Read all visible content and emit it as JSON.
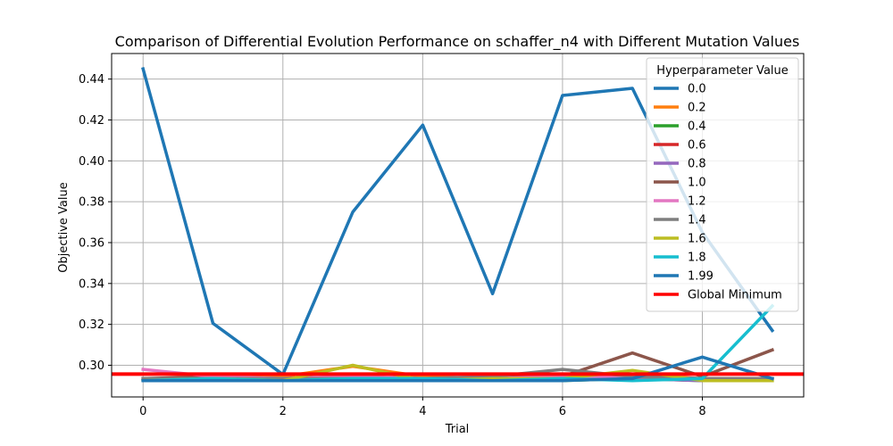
{
  "chart_data": {
    "type": "line",
    "title": "Comparison of Differential Evolution Performance on schaffer_n4 with Different Mutation Values",
    "xlabel": "Trial",
    "ylabel": "Objective Value",
    "xlim": [
      -0.45,
      9.45
    ],
    "ylim": [
      0.2845,
      0.4525
    ],
    "xticks": [
      0,
      2,
      4,
      6,
      8
    ],
    "yticks": [
      0.3,
      0.32,
      0.34,
      0.36,
      0.38,
      0.4,
      0.42,
      0.44
    ],
    "grid": true,
    "legend": {
      "title": "Hyperparameter Value",
      "placement": "top-right"
    },
    "x": [
      0,
      1,
      2,
      3,
      4,
      5,
      6,
      7,
      8,
      9
    ],
    "series": [
      {
        "name": "0.0",
        "color": "#1f77b4",
        "values": [
          0.445,
          0.3205,
          0.2955,
          0.375,
          0.4175,
          0.335,
          0.432,
          0.4355,
          0.365,
          0.317
        ]
      },
      {
        "name": "0.2",
        "color": "#ff7f0e",
        "values": [
          0.2925,
          0.2945,
          0.2945,
          0.2995,
          0.2945,
          0.2935,
          0.2945,
          0.2955,
          0.2935,
          0.2935
        ]
      },
      {
        "name": "0.4",
        "color": "#2ca02c",
        "values": [
          0.2925,
          0.2935,
          0.2925,
          0.2935,
          0.2925,
          0.2925,
          0.2925,
          0.2935,
          0.2925,
          0.2925
        ]
      },
      {
        "name": "0.6",
        "color": "#d62728",
        "values": [
          0.2935,
          0.2935,
          0.2935,
          0.2945,
          0.2935,
          0.2935,
          0.2945,
          0.2945,
          0.2935,
          0.2935
        ]
      },
      {
        "name": "0.8",
        "color": "#9467bd",
        "values": [
          0.2925,
          0.2935,
          0.2925,
          0.2935,
          0.2925,
          0.2935,
          0.2935,
          0.2935,
          0.2925,
          0.2935
        ]
      },
      {
        "name": "1.0",
        "color": "#8c564b",
        "values": [
          0.2935,
          0.2945,
          0.2935,
          0.2945,
          0.2935,
          0.2945,
          0.2945,
          0.306,
          0.2945,
          0.3075
        ]
      },
      {
        "name": "1.2",
        "color": "#e377c2",
        "values": [
          0.298,
          0.2945,
          0.2935,
          0.2945,
          0.2935,
          0.2935,
          0.2945,
          0.2945,
          0.2935,
          0.2935
        ]
      },
      {
        "name": "1.4",
        "color": "#7f7f7f",
        "values": [
          0.2935,
          0.2935,
          0.2935,
          0.2935,
          0.2935,
          0.2945,
          0.298,
          0.2945,
          0.2935,
          0.2935
        ]
      },
      {
        "name": "1.6",
        "color": "#bcbd22",
        "values": [
          0.2925,
          0.2935,
          0.2925,
          0.3,
          0.2925,
          0.2935,
          0.2935,
          0.2975,
          0.2925,
          0.2925
        ]
      },
      {
        "name": "1.8",
        "color": "#17becf",
        "values": [
          0.2925,
          0.2935,
          0.2925,
          0.2935,
          0.2935,
          0.2925,
          0.2935,
          0.2925,
          0.2935,
          0.329
        ]
      },
      {
        "name": "1.99",
        "color": "#1f77b4",
        "values": [
          0.2925,
          0.2925,
          0.2925,
          0.2925,
          0.2925,
          0.2925,
          0.2925,
          0.2935,
          0.304,
          0.2935
        ]
      }
    ],
    "global_minimum": {
      "name": "Global Minimum",
      "value": 0.2957,
      "color": "#ff0000"
    }
  }
}
